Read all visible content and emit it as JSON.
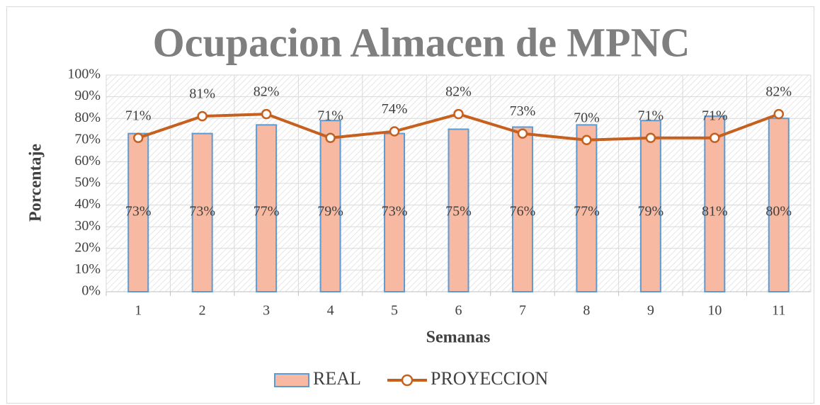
{
  "chart_data": {
    "type": "bar_line",
    "title": "Ocupacion Almacen de MPNC",
    "x_label": "Semanas",
    "y_label": "Porcentaje",
    "categories": [
      "1",
      "2",
      "3",
      "4",
      "5",
      "6",
      "7",
      "8",
      "9",
      "10",
      "11"
    ],
    "series": [
      {
        "name": "REAL",
        "type": "bar",
        "color": "#f7b9a1",
        "edge_color": "#5b9bd5",
        "values": [
          73,
          73,
          77,
          79,
          73,
          75,
          76,
          77,
          79,
          81,
          80
        ],
        "value_labels": [
          "73%",
          "73%",
          "77%",
          "79%",
          "73%",
          "75%",
          "76%",
          "77%",
          "79%",
          "81%",
          "80%"
        ]
      },
      {
        "name": "PROYECCION",
        "type": "line",
        "color": "#c5601f",
        "values": [
          71,
          81,
          82,
          71,
          74,
          82,
          73,
          70,
          71,
          71,
          82
        ],
        "value_labels": [
          "71%",
          "81%",
          "82%",
          "71%",
          "74%",
          "82%",
          "73%",
          "70%",
          "71%",
          "71%",
          "82%"
        ]
      }
    ],
    "ylim": [
      0,
      100
    ],
    "yticks": [
      {
        "value": 0,
        "label": "0%"
      },
      {
        "value": 10,
        "label": "10%"
      },
      {
        "value": 20,
        "label": "20%"
      },
      {
        "value": 30,
        "label": "30%"
      },
      {
        "value": 40,
        "label": "40%"
      },
      {
        "value": 50,
        "label": "50%"
      },
      {
        "value": 60,
        "label": "60%"
      },
      {
        "value": 70,
        "label": "70%"
      },
      {
        "value": 80,
        "label": "80%"
      },
      {
        "value": 90,
        "label": "90%"
      },
      {
        "value": 100,
        "label": "100%"
      }
    ],
    "grid": true,
    "legend": "bottom"
  }
}
